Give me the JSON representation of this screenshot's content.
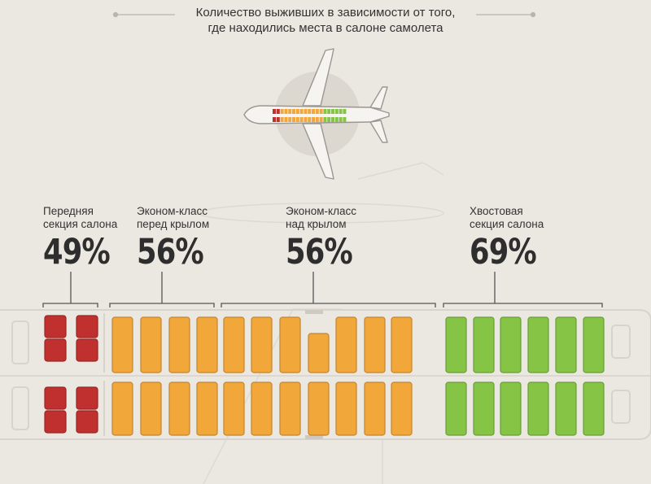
{
  "title": {
    "line1": "Количество выживших в зависимости от того,",
    "line2": "где находились места в салоне самолета"
  },
  "colors": {
    "front": "#c0302e",
    "economy": "#f2a73b",
    "tail": "#86c446",
    "background": "#ebe7e1"
  },
  "sections": [
    {
      "id": "front",
      "label_line1": "Передняя",
      "label_line2": "секция салона",
      "percent": "49%",
      "survival_rate": 0.49,
      "color": "#c0302e",
      "seat_columns": 2
    },
    {
      "id": "economy-before-wing",
      "label_line1": "Эконом-класс",
      "label_line2": "перед крылом",
      "percent": "56%",
      "survival_rate": 0.56,
      "color": "#f2a73b",
      "seat_columns": 4
    },
    {
      "id": "economy-over-wing",
      "label_line1": "Эконом-класс",
      "label_line2": "над крылом",
      "percent": "56%",
      "survival_rate": 0.56,
      "color": "#f2a73b",
      "seat_columns": 7
    },
    {
      "id": "tail",
      "label_line1": "Хвостовая",
      "label_line2": "секция салона",
      "percent": "69%",
      "survival_rate": 0.69,
      "color": "#86c446",
      "seat_columns": 6
    }
  ]
}
